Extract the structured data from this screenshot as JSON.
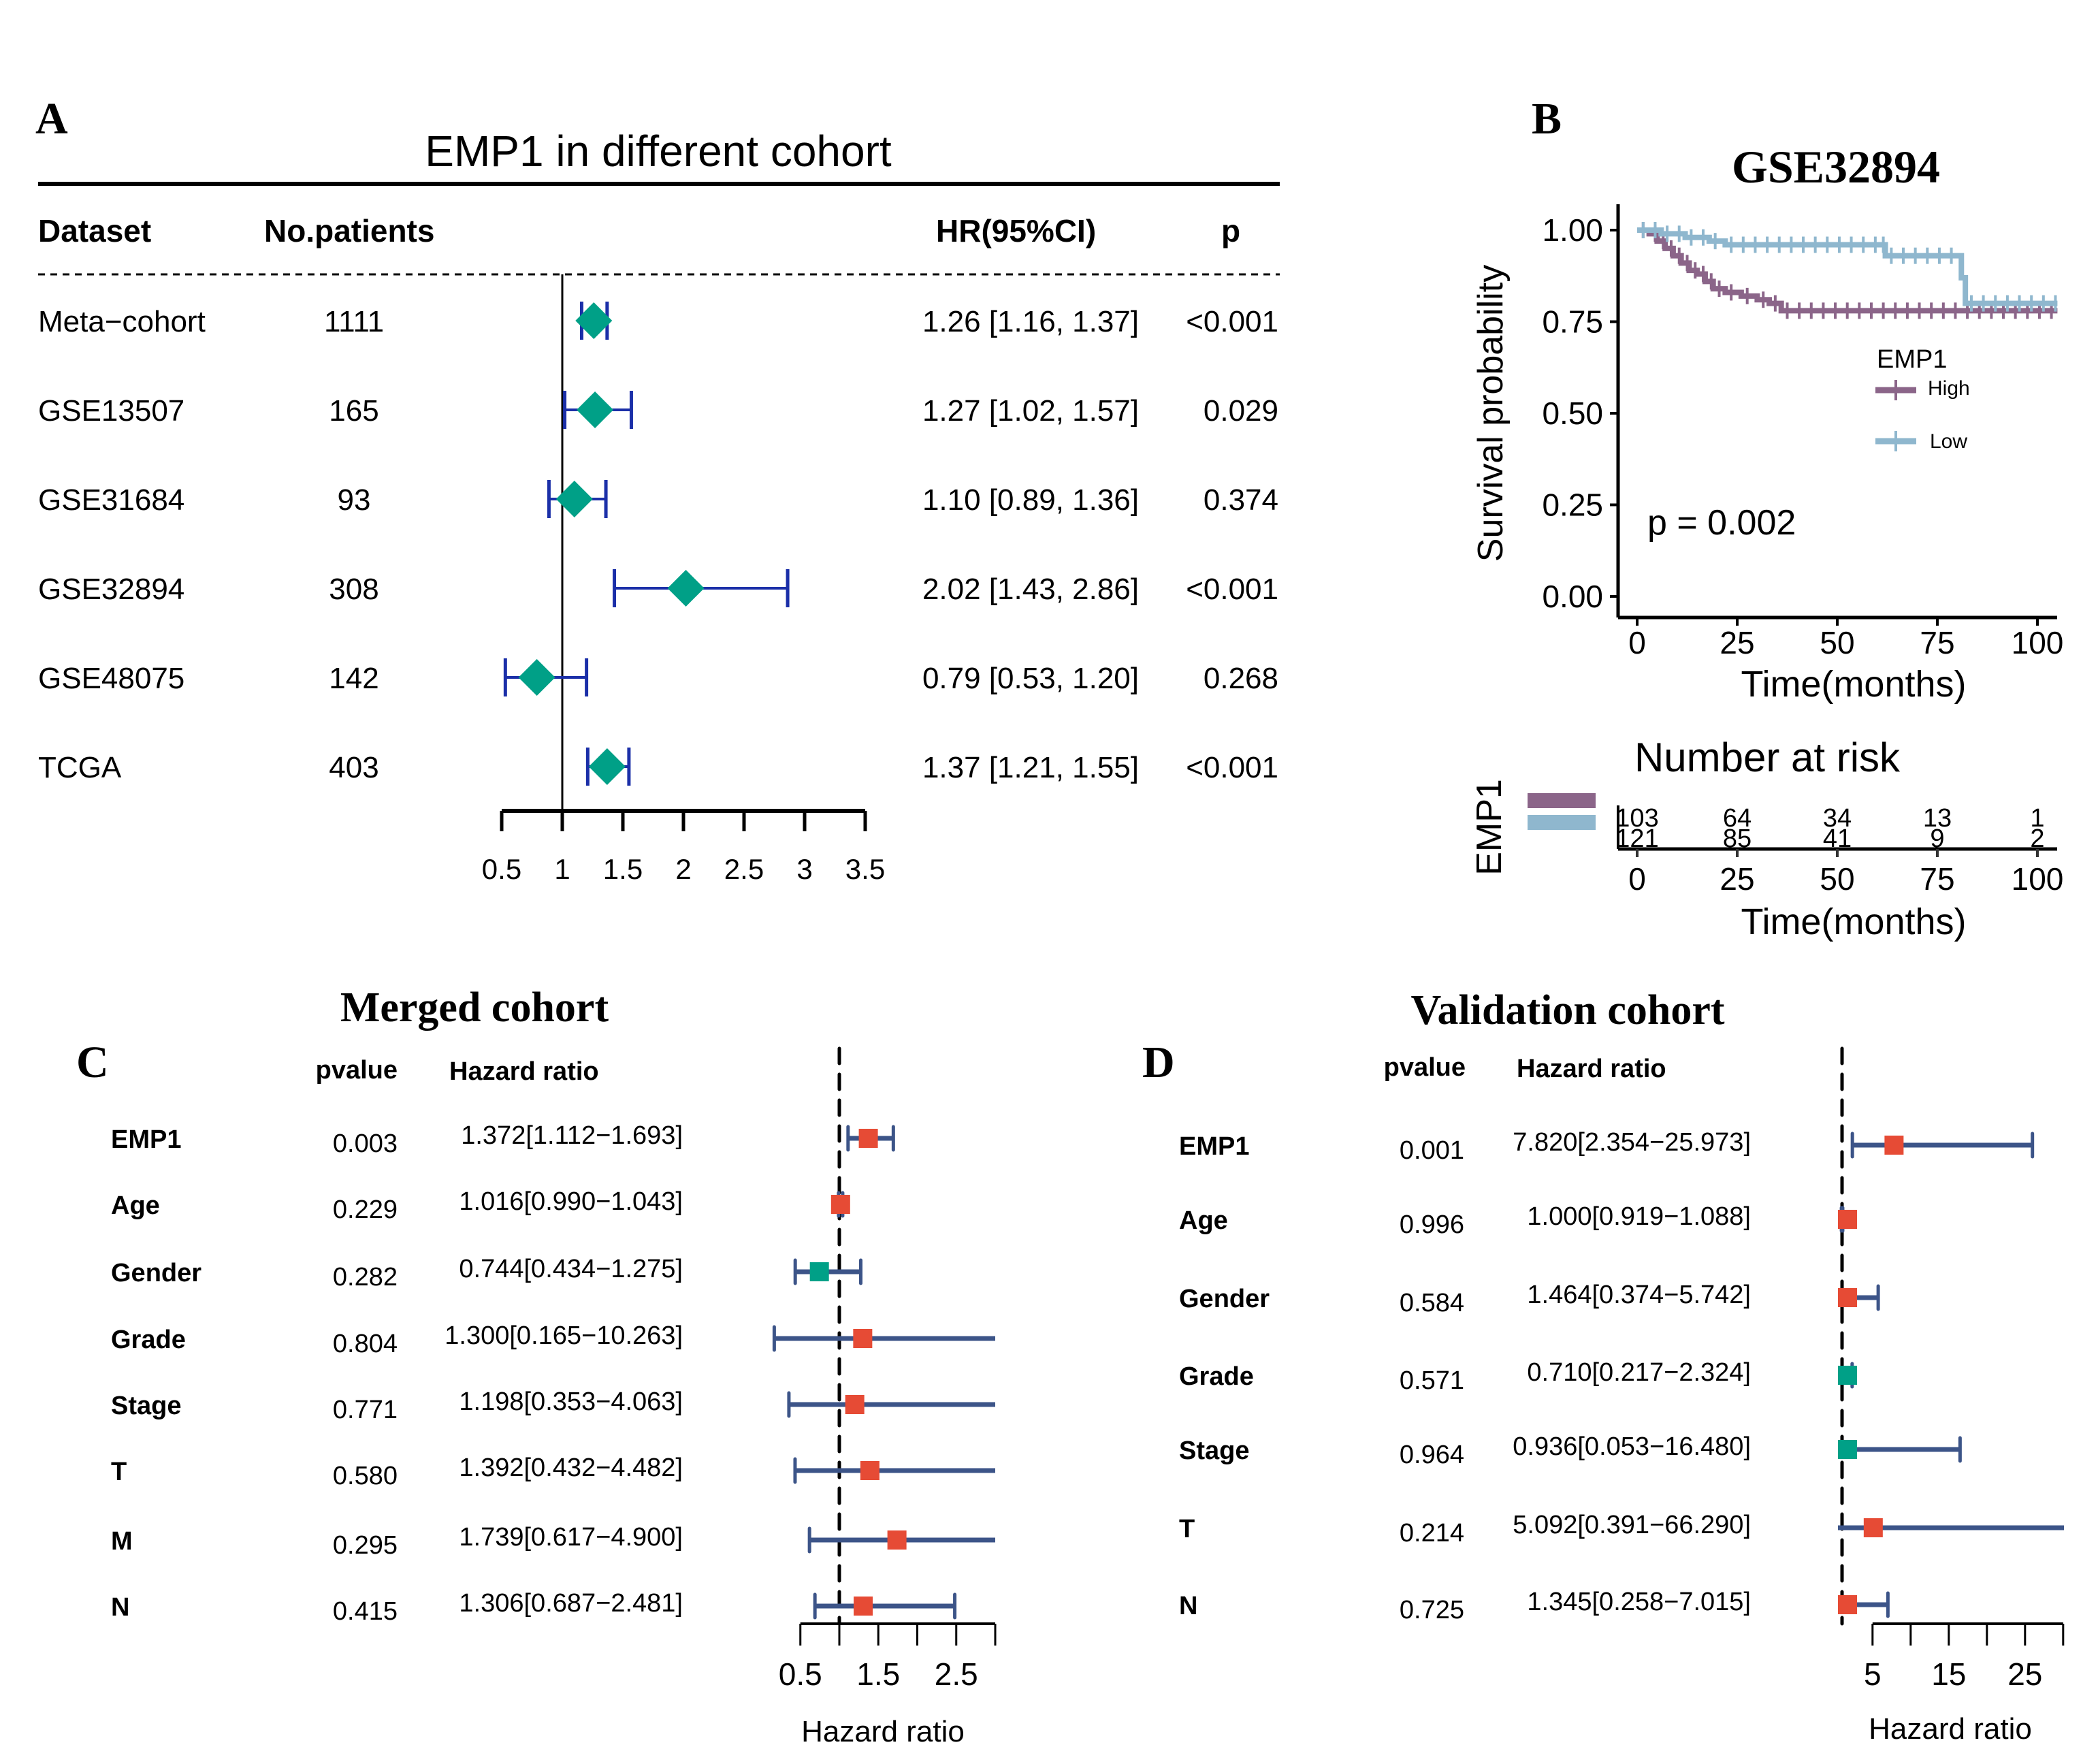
{
  "panels": {
    "A": {
      "letter": "A"
    },
    "B": {
      "letter": "B"
    },
    "C": {
      "letter": "C"
    },
    "D": {
      "letter": "D"
    }
  },
  "chart_data": [
    {
      "id": "A",
      "type": "forest",
      "title": "EMP1 in different cohort",
      "headers": {
        "dataset": "Dataset",
        "patients": "No.patients",
        "hr": "HR(95%CI)",
        "p": "p"
      },
      "xlim": [
        0.5,
        3.5
      ],
      "ticks": [
        0.5,
        1,
        1.5,
        2,
        2.5,
        3,
        3.5
      ],
      "tick_labels": [
        "0.5",
        "1",
        "1.5",
        "2",
        "2.5",
        "3",
        "3.5"
      ],
      "reference_line": 1,
      "colors": {
        "marker": "#00A087",
        "whisker": "#1B2FA8"
      },
      "rows": [
        {
          "dataset": "Meta−cohort",
          "patients": "1111",
          "hr": 1.26,
          "lo": 1.16,
          "hi": 1.37,
          "hr_text": "1.26 [1.16, 1.37]",
          "p": "<0.001"
        },
        {
          "dataset": "GSE13507",
          "patients": "165",
          "hr": 1.27,
          "lo": 1.02,
          "hi": 1.57,
          "hr_text": "1.27 [1.02, 1.57]",
          "p": "0.029"
        },
        {
          "dataset": "GSE31684",
          "patients": "93",
          "hr": 1.1,
          "lo": 0.89,
          "hi": 1.36,
          "hr_text": "1.10 [0.89, 1.36]",
          "p": "0.374"
        },
        {
          "dataset": "GSE32894",
          "patients": "308",
          "hr": 2.02,
          "lo": 1.43,
          "hi": 2.86,
          "hr_text": "2.02 [1.43, 2.86]",
          "p": "<0.001"
        },
        {
          "dataset": "GSE48075",
          "patients": "142",
          "hr": 0.79,
          "lo": 0.53,
          "hi": 1.2,
          "hr_text": "0.79 [0.53, 1.20]",
          "p": "0.268"
        },
        {
          "dataset": "TCGA",
          "patients": "403",
          "hr": 1.37,
          "lo": 1.21,
          "hi": 1.55,
          "hr_text": "1.37 [1.21, 1.55]",
          "p": "<0.001"
        }
      ]
    },
    {
      "id": "B",
      "type": "line",
      "subtype": "kaplan-meier",
      "title": "GSE32894",
      "xlabel": "Time(months)",
      "ylabel": "Survival probability",
      "xlim": [
        0,
        105
      ],
      "ylim": [
        0,
        1
      ],
      "xticks": [
        0,
        25,
        50,
        75,
        100
      ],
      "yticks": [
        0,
        0.25,
        0.5,
        0.75,
        1.0
      ],
      "ytick_labels": [
        "0.00",
        "0.25",
        "0.50",
        "0.75",
        "1.00"
      ],
      "pvalue_text": "p = 0.002",
      "legend": {
        "title": "EMP1",
        "position": "right-middle",
        "entries": [
          "High",
          "Low"
        ]
      },
      "series": [
        {
          "name": "High",
          "color": "#8B6589",
          "x": [
            0,
            3,
            5,
            7,
            9,
            11,
            13,
            15,
            17,
            19,
            22,
            26,
            30,
            33,
            36,
            105
          ],
          "y": [
            1.0,
            0.99,
            0.97,
            0.95,
            0.93,
            0.91,
            0.89,
            0.88,
            0.86,
            0.84,
            0.83,
            0.82,
            0.81,
            0.8,
            0.78,
            0.78
          ]
        },
        {
          "name": "Low",
          "color": "#8FB7CE",
          "x": [
            0,
            6,
            12,
            18,
            22,
            60,
            62,
            81,
            82,
            105
          ],
          "y": [
            1.0,
            0.99,
            0.98,
            0.97,
            0.96,
            0.96,
            0.93,
            0.87,
            0.8,
            0.8
          ]
        }
      ],
      "risk_table": {
        "title": "Number at risk",
        "strata_label": "EMP1",
        "times": [
          0,
          25,
          50,
          75,
          100
        ],
        "rows": [
          {
            "name": "High",
            "color": "#8B6589",
            "values": [
              "103",
              "64",
              "34",
              "13",
              "1"
            ]
          },
          {
            "name": "Low",
            "color": "#8FB7CE",
            "values": [
              "121",
              "85",
              "41",
              "9",
              "2"
            ]
          }
        ],
        "xlabel": "Time(months)"
      }
    },
    {
      "id": "C",
      "type": "forest",
      "title": "Merged cohort",
      "headers": {
        "pvalue": "pvalue",
        "hr": "Hazard ratio"
      },
      "xlabel": "Hazard ratio",
      "xlim": [
        0.5,
        3.0
      ],
      "ticks": [
        0.5,
        1,
        1.5,
        2,
        2.5,
        3
      ],
      "tick_labels": [
        "0.5",
        "",
        "1.5",
        "",
        "2.5",
        ""
      ],
      "reference_line": 1,
      "colors": {
        "risk": "#E64B35",
        "protective": "#00A087",
        "whisker": "#3C5488"
      },
      "rows": [
        {
          "label": "EMP1",
          "pvalue": "0.003",
          "hr": 1.372,
          "lo": 1.112,
          "hi": 1.693,
          "hr_text": "1.372[1.112−1.693]"
        },
        {
          "label": "Age",
          "pvalue": "0.229",
          "hr": 1.016,
          "lo": 0.99,
          "hi": 1.043,
          "hr_text": "1.016[0.990−1.043]"
        },
        {
          "label": "Gender",
          "pvalue": "0.282",
          "hr": 0.744,
          "lo": 0.434,
          "hi": 1.275,
          "hr_text": "0.744[0.434−1.275]"
        },
        {
          "label": "Grade",
          "pvalue": "0.804",
          "hr": 1.3,
          "lo": 0.165,
          "hi": 10.263,
          "hr_text": "1.300[0.165−10.263]"
        },
        {
          "label": "Stage",
          "pvalue": "0.771",
          "hr": 1.198,
          "lo": 0.353,
          "hi": 4.063,
          "hr_text": "1.198[0.353−4.063]"
        },
        {
          "label": "T",
          "pvalue": "0.580",
          "hr": 1.392,
          "lo": 0.432,
          "hi": 4.482,
          "hr_text": "1.392[0.432−4.482]"
        },
        {
          "label": "M",
          "pvalue": "0.295",
          "hr": 1.739,
          "lo": 0.617,
          "hi": 4.9,
          "hr_text": "1.739[0.617−4.900]"
        },
        {
          "label": "N",
          "pvalue": "0.415",
          "hr": 1.306,
          "lo": 0.687,
          "hi": 2.481,
          "hr_text": "1.306[0.687−2.481]"
        }
      ]
    },
    {
      "id": "D",
      "type": "forest",
      "title": "Validation cohort",
      "headers": {
        "pvalue": "pvalue",
        "hr": "Hazard ratio"
      },
      "xlabel": "Hazard ratio",
      "xlim": [
        0,
        30
      ],
      "ticks": [
        5,
        10,
        15,
        20,
        25,
        30
      ],
      "tick_labels": [
        "5",
        "",
        "15",
        "",
        "25",
        ""
      ],
      "reference_line": 1,
      "colors": {
        "risk": "#E64B35",
        "protective": "#00A087",
        "whisker": "#3C5488"
      },
      "rows": [
        {
          "label": "EMP1",
          "pvalue": "0.001",
          "hr": 7.82,
          "lo": 2.354,
          "hi": 25.973,
          "hr_text": "7.820[2.354−25.973]"
        },
        {
          "label": "Age",
          "pvalue": "0.996",
          "hr": 1.0,
          "lo": 0.919,
          "hi": 1.088,
          "hr_text": "1.000[0.919−1.088]"
        },
        {
          "label": "Gender",
          "pvalue": "0.584",
          "hr": 1.464,
          "lo": 0.374,
          "hi": 5.742,
          "hr_text": "1.464[0.374−5.742]"
        },
        {
          "label": "Grade",
          "pvalue": "0.571",
          "hr": 0.71,
          "lo": 0.217,
          "hi": 2.324,
          "hr_text": "0.710[0.217−2.324]"
        },
        {
          "label": "Stage",
          "pvalue": "0.964",
          "hr": 0.936,
          "lo": 0.053,
          "hi": 16.48,
          "hr_text": "0.936[0.053−16.480]"
        },
        {
          "label": "T",
          "pvalue": "0.214",
          "hr": 5.092,
          "lo": 0.391,
          "hi": 66.29,
          "hr_text": "5.092[0.391−66.290]"
        },
        {
          "label": "N",
          "pvalue": "0.725",
          "hr": 1.345,
          "lo": 0.258,
          "hi": 7.015,
          "hr_text": "1.345[0.258−7.015]"
        }
      ]
    }
  ]
}
